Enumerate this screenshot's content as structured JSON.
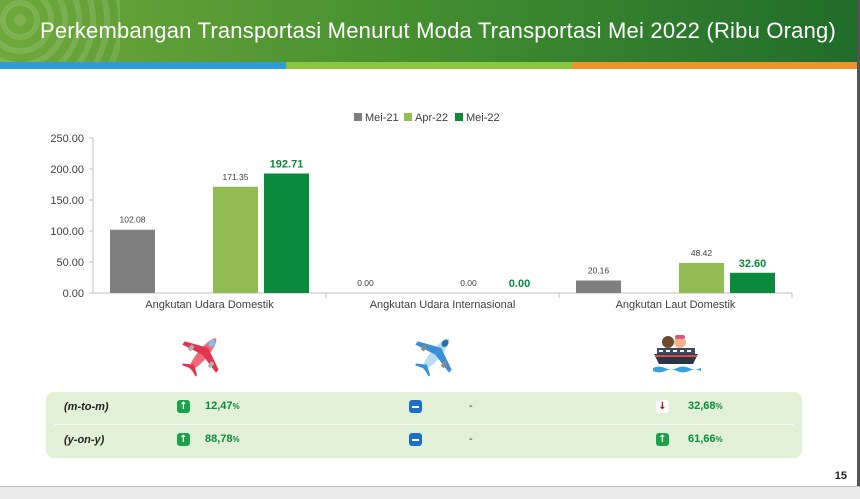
{
  "title": "Perkembangan Transportasi Menurut Moda Transportasi Mei 2022 (Ribu Orang)",
  "page_number": "15",
  "colors": {
    "mei21": "#7f7f7f",
    "apr22": "#92bd55",
    "mei22": "#0a8a3a",
    "up": "#1aa14a",
    "down": "#c00000",
    "flat": "#1f6fc9"
  },
  "chart_data": {
    "type": "bar",
    "title": "",
    "xlabel": "",
    "ylabel": "",
    "ylim": [
      0,
      250
    ],
    "yticks": [
      "0.00",
      "50.00",
      "100.00",
      "150.00",
      "200.00",
      "250.00"
    ],
    "legend_position": "top",
    "categories": [
      "Angkutan Udara Domestik",
      "Angkutan Udara Internasional",
      "Angkutan Laut Domestik"
    ],
    "series": [
      {
        "name": "Mei-21",
        "values": [
          102.08,
          0.0,
          20.16
        ],
        "labels": [
          "102.08",
          "0.00",
          "20.16"
        ]
      },
      {
        "name": "Apr-22",
        "values": [
          171.35,
          0.0,
          48.42
        ],
        "labels": [
          "171.35",
          "0.00",
          "48.42"
        ]
      },
      {
        "name": "Mei-22",
        "values": [
          192.71,
          0.0,
          32.6
        ],
        "labels": [
          "192.71",
          "0.00",
          "32.60"
        ]
      }
    ]
  },
  "icons": [
    "airplane-domestic-icon",
    "airplane-international-icon",
    "ship-icon"
  ],
  "changes": {
    "rows": [
      {
        "label": "(m-to-m)",
        "cells": [
          {
            "direction": "up",
            "value": "12,47",
            "unit": "%"
          },
          {
            "direction": "flat",
            "value": "-",
            "unit": ""
          },
          {
            "direction": "down",
            "value": "32,68",
            "unit": "%"
          }
        ]
      },
      {
        "label": "(y-on-y)",
        "cells": [
          {
            "direction": "up",
            "value": "88,78",
            "unit": "%"
          },
          {
            "direction": "flat",
            "value": "-",
            "unit": ""
          },
          {
            "direction": "up",
            "value": "61,66",
            "unit": "%"
          }
        ]
      }
    ]
  }
}
